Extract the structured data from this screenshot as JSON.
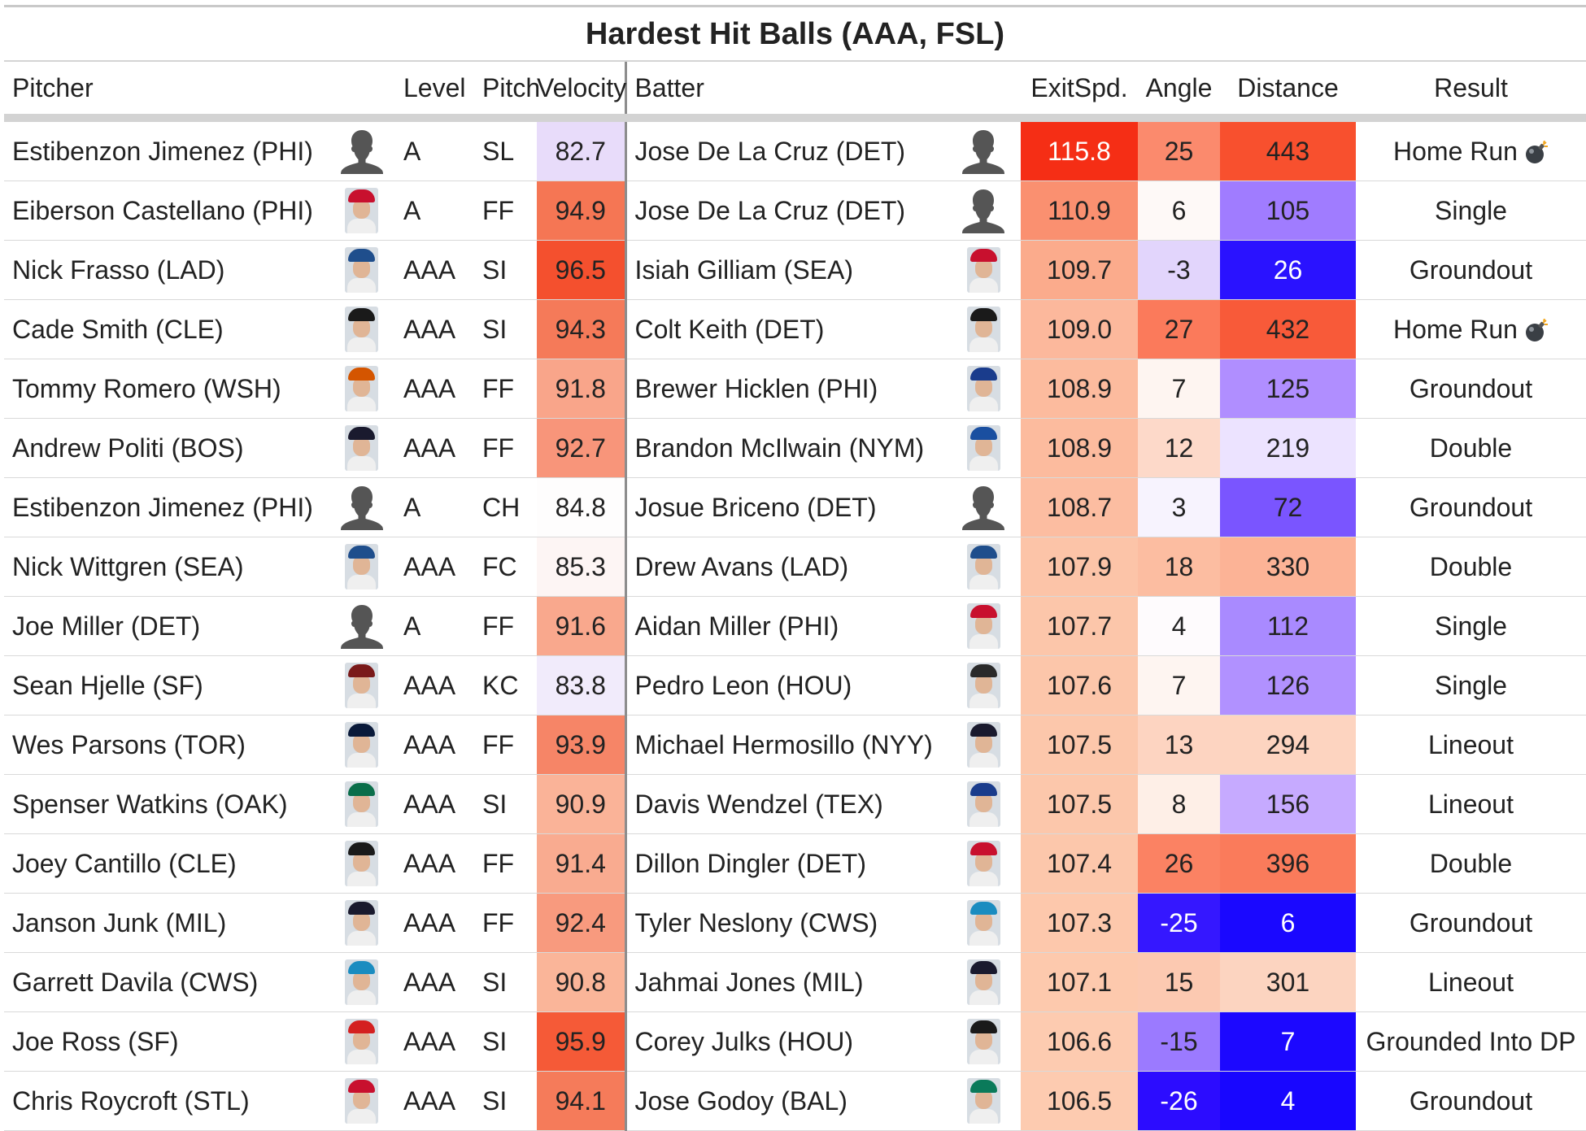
{
  "title": "Hardest Hit Balls (AAA, FSL)",
  "columns": {
    "pitcher": "Pitcher",
    "level": "Level",
    "pitch": "Pitch",
    "velocity": "Velocity",
    "batter": "Batter",
    "exit_speed": "ExitSpd.",
    "angle": "Angle",
    "distance": "Distance",
    "result": "Result"
  },
  "rows": [
    {
      "pitcher": "Estibenzon Jimenez (PHI)",
      "level": "A",
      "pitch": "SL",
      "velocity": "82.7",
      "batter": "Jose De La Cruz (DET)",
      "exit_speed": "115.8",
      "angle": "25",
      "distance": "443",
      "result": "Home Run",
      "result_icon": "bomb-icon"
    },
    {
      "pitcher": "Eiberson Castellano (PHI)",
      "level": "A",
      "pitch": "FF",
      "velocity": "94.9",
      "batter": "Jose De La Cruz (DET)",
      "exit_speed": "110.9",
      "angle": "6",
      "distance": "105",
      "result": "Single"
    },
    {
      "pitcher": "Nick Frasso (LAD)",
      "level": "AAA",
      "pitch": "SI",
      "velocity": "96.5",
      "batter": "Isiah Gilliam (SEA)",
      "exit_speed": "109.7",
      "angle": "-3",
      "distance": "26",
      "result": "Groundout"
    },
    {
      "pitcher": "Cade Smith (CLE)",
      "level": "AAA",
      "pitch": "SI",
      "velocity": "94.3",
      "batter": "Colt Keith (DET)",
      "exit_speed": "109.0",
      "angle": "27",
      "distance": "432",
      "result": "Home Run",
      "result_icon": "bomb-icon"
    },
    {
      "pitcher": "Tommy Romero (WSH)",
      "level": "AAA",
      "pitch": "FF",
      "velocity": "91.8",
      "batter": "Brewer Hicklen (PHI)",
      "exit_speed": "108.9",
      "angle": "7",
      "distance": "125",
      "result": "Groundout"
    },
    {
      "pitcher": "Andrew Politi (BOS)",
      "level": "AAA",
      "pitch": "FF",
      "velocity": "92.7",
      "batter": "Brandon McIlwain (NYM)",
      "exit_speed": "108.9",
      "angle": "12",
      "distance": "219",
      "result": "Double"
    },
    {
      "pitcher": "Estibenzon Jimenez (PHI)",
      "level": "A",
      "pitch": "CH",
      "velocity": "84.8",
      "batter": "Josue Briceno (DET)",
      "exit_speed": "108.7",
      "angle": "3",
      "distance": "72",
      "result": "Groundout"
    },
    {
      "pitcher": "Nick Wittgren (SEA)",
      "level": "AAA",
      "pitch": "FC",
      "velocity": "85.3",
      "batter": "Drew Avans (LAD)",
      "exit_speed": "107.9",
      "angle": "18",
      "distance": "330",
      "result": "Double"
    },
    {
      "pitcher": "Joe Miller (DET)",
      "level": "A",
      "pitch": "FF",
      "velocity": "91.6",
      "batter": "Aidan Miller (PHI)",
      "exit_speed": "107.7",
      "angle": "4",
      "distance": "112",
      "result": "Single"
    },
    {
      "pitcher": "Sean Hjelle (SF)",
      "level": "AAA",
      "pitch": "KC",
      "velocity": "83.8",
      "batter": "Pedro Leon (HOU)",
      "exit_speed": "107.6",
      "angle": "7",
      "distance": "126",
      "result": "Single"
    },
    {
      "pitcher": "Wes Parsons (TOR)",
      "level": "AAA",
      "pitch": "FF",
      "velocity": "93.9",
      "batter": "Michael Hermosillo (NYY)",
      "exit_speed": "107.5",
      "angle": "13",
      "distance": "294",
      "result": "Lineout"
    },
    {
      "pitcher": "Spenser Watkins (OAK)",
      "level": "AAA",
      "pitch": "SI",
      "velocity": "90.9",
      "batter": "Davis Wendzel (TEX)",
      "exit_speed": "107.5",
      "angle": "8",
      "distance": "156",
      "result": "Lineout"
    },
    {
      "pitcher": "Joey Cantillo (CLE)",
      "level": "AAA",
      "pitch": "FF",
      "velocity": "91.4",
      "batter": "Dillon Dingler (DET)",
      "exit_speed": "107.4",
      "angle": "26",
      "distance": "396",
      "result": "Double"
    },
    {
      "pitcher": "Janson Junk (MIL)",
      "level": "AAA",
      "pitch": "FF",
      "velocity": "92.4",
      "batter": "Tyler Neslony (CWS)",
      "exit_speed": "107.3",
      "angle": "-25",
      "distance": "6",
      "result": "Groundout"
    },
    {
      "pitcher": "Garrett Davila (CWS)",
      "level": "AAA",
      "pitch": "SI",
      "velocity": "90.8",
      "batter": "Jahmai Jones (MIL)",
      "exit_speed": "107.1",
      "angle": "15",
      "distance": "301",
      "result": "Lineout"
    },
    {
      "pitcher": "Joe Ross (SF)",
      "level": "AAA",
      "pitch": "SI",
      "velocity": "95.9",
      "batter": "Corey Julks (HOU)",
      "exit_speed": "106.6",
      "angle": "-15",
      "distance": "7",
      "result": "Grounded Into DP"
    },
    {
      "pitcher": "Chris Roycroft (STL)",
      "level": "AAA",
      "pitch": "SI",
      "velocity": "94.1",
      "batter": "Jose Godoy (BAL)",
      "exit_speed": "106.5",
      "angle": "-26",
      "distance": "4",
      "result": "Groundout"
    }
  ],
  "headshots": {
    "pitcher": [
      "silhouette",
      "#c8102e",
      "#1f4e8c",
      "#1a1a1a",
      "#d45500",
      "#1a1a2e",
      "silhouette",
      "#1f4e8c",
      "silhouette",
      "#7a1a1a",
      "#0a1a3a",
      "#0a6e4a",
      "#1a1a1a",
      "#1a1a2e",
      "#1a8cc0",
      "#d42020",
      "#c8102e"
    ],
    "batter": [
      "silhouette",
      "silhouette",
      "#c8102e",
      "#1a1a1a",
      "#1a3c8c",
      "#1a4fa0",
      "silhouette",
      "#1f4e8c",
      "#c8102e",
      "#2a2a2a",
      "#1a1a2e",
      "#1a3c8c",
      "#c8102e",
      "#1a8cc0",
      "#1a1a2e",
      "#1a1a1a",
      "#0a7a5a"
    ]
  },
  "colors": {
    "velocity": [
      "#e8dcfa",
      "#f57654",
      "#f4502e",
      "#f57a59",
      "#f9a58a",
      "#f8957a",
      "#fefdfd",
      "#fdf5f4",
      "#f9a88d",
      "#f1ebfb",
      "#f68567",
      "#fab398",
      "#f9ab90",
      "#f89a7e",
      "#fab599",
      "#f55a37",
      "#f57b5a"
    ],
    "exit_speed": [
      "#f52e15",
      "#fa9070",
      "#fbab8c",
      "#fcb89c",
      "#fcbb9e",
      "#fcbb9e",
      "#fcbda1",
      "#fcc4a8",
      "#fcc6aa",
      "#fcc6aa",
      "#fcc7ab",
      "#fcc7ab",
      "#fcc7ab",
      "#fdc8ac",
      "#fdc9ad",
      "#fdcbb0",
      "#fdcbb0"
    ],
    "angle": [
      "#fb8a6d",
      "#fef9f7",
      "#e2d5fc",
      "#fb7a5b",
      "#fef5f1",
      "#fdd9c9",
      "#f7f3fe",
      "#fcbda1",
      "#fefbfd",
      "#fef5f1",
      "#fdd4c1",
      "#feefe7",
      "#fb8263",
      "#3517ff",
      "#fcc9b1",
      "#9b7aff",
      "#2c0cff"
    ],
    "distance": [
      "#f8502e",
      "#a07cff",
      "#2a12ff",
      "#f85a39",
      "#b08eff",
      "#ece3ff",
      "#7a55ff",
      "#fcb396",
      "#a98aff",
      "#b191ff",
      "#fdd4c0",
      "#c6aaff",
      "#fa7b5b",
      "#1a08ff",
      "#fcd4c0",
      "#1c08ff",
      "#1806ff"
    ],
    "dark_cells": {
      "exit_speed": [
        0
      ],
      "angle": [
        13,
        16
      ],
      "distance": [
        2,
        13,
        15,
        16
      ]
    }
  }
}
